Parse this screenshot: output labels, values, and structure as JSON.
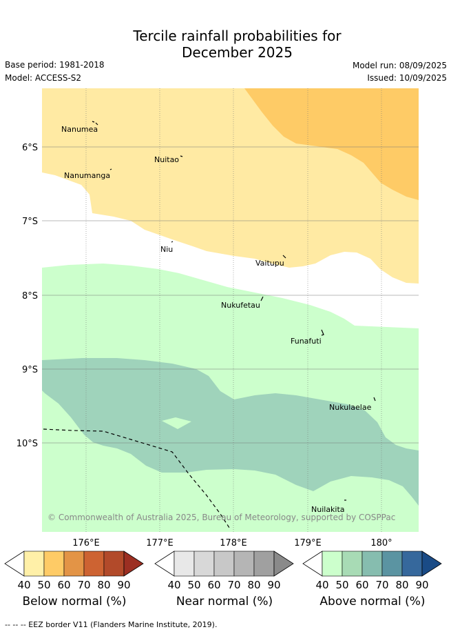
{
  "header": {
    "title_line1": "Tercile rainfall probabilities for",
    "title_line2": "December 2025",
    "base_period": "Base period: 1981-2018",
    "model": "Model: ACCESS-S2",
    "model_run": "Model run: 08/09/2025",
    "issued": "Issued: 10/09/2025"
  },
  "map": {
    "lat_labels": [
      "6°S",
      "7°S",
      "8°S",
      "9°S",
      "10°S"
    ],
    "lon_labels": [
      "176°E",
      "177°E",
      "178°E",
      "179°E",
      "180°"
    ],
    "islands": [
      "Nanumea",
      "Nuitao",
      "Nanumanga",
      "Niu",
      "Vaitupu",
      "Nukufetau",
      "Funafuti",
      "Nukulaelae",
      "Nuilakita"
    ],
    "copyright": "© Commonwealth of Australia 2025, Bureau of Meteorology, supported by COSPPac",
    "colors": {
      "below_40": "#ffeaa3",
      "below_50": "#fecb66",
      "near": "#ffffff",
      "above_40": "#ccffcc",
      "above_60": "#9fd3bb"
    }
  },
  "legend": {
    "ticks": [
      "40",
      "50",
      "60",
      "70",
      "80",
      "90"
    ],
    "below": {
      "title": "Below normal (%)",
      "colors": [
        "#fff0a8",
        "#fecb66",
        "#e39446",
        "#cd6332",
        "#b24a2a",
        "#9c2f22"
      ]
    },
    "near": {
      "title": "Near normal (%)",
      "colors": [
        "#e8e8e8",
        "#d8d8d8",
        "#c8c8c8",
        "#b5b5b5",
        "#a0a0a0",
        "#8a8a8a"
      ]
    },
    "above": {
      "title": "Above normal (%)",
      "colors": [
        "#ccffcc",
        "#a8dbb5",
        "#86bdaf",
        "#5b94a2",
        "#36689c",
        "#1a4b86"
      ]
    }
  },
  "footnote": "-- -- -- EEZ border V11 (Flanders Marine Institute, 2019)."
}
